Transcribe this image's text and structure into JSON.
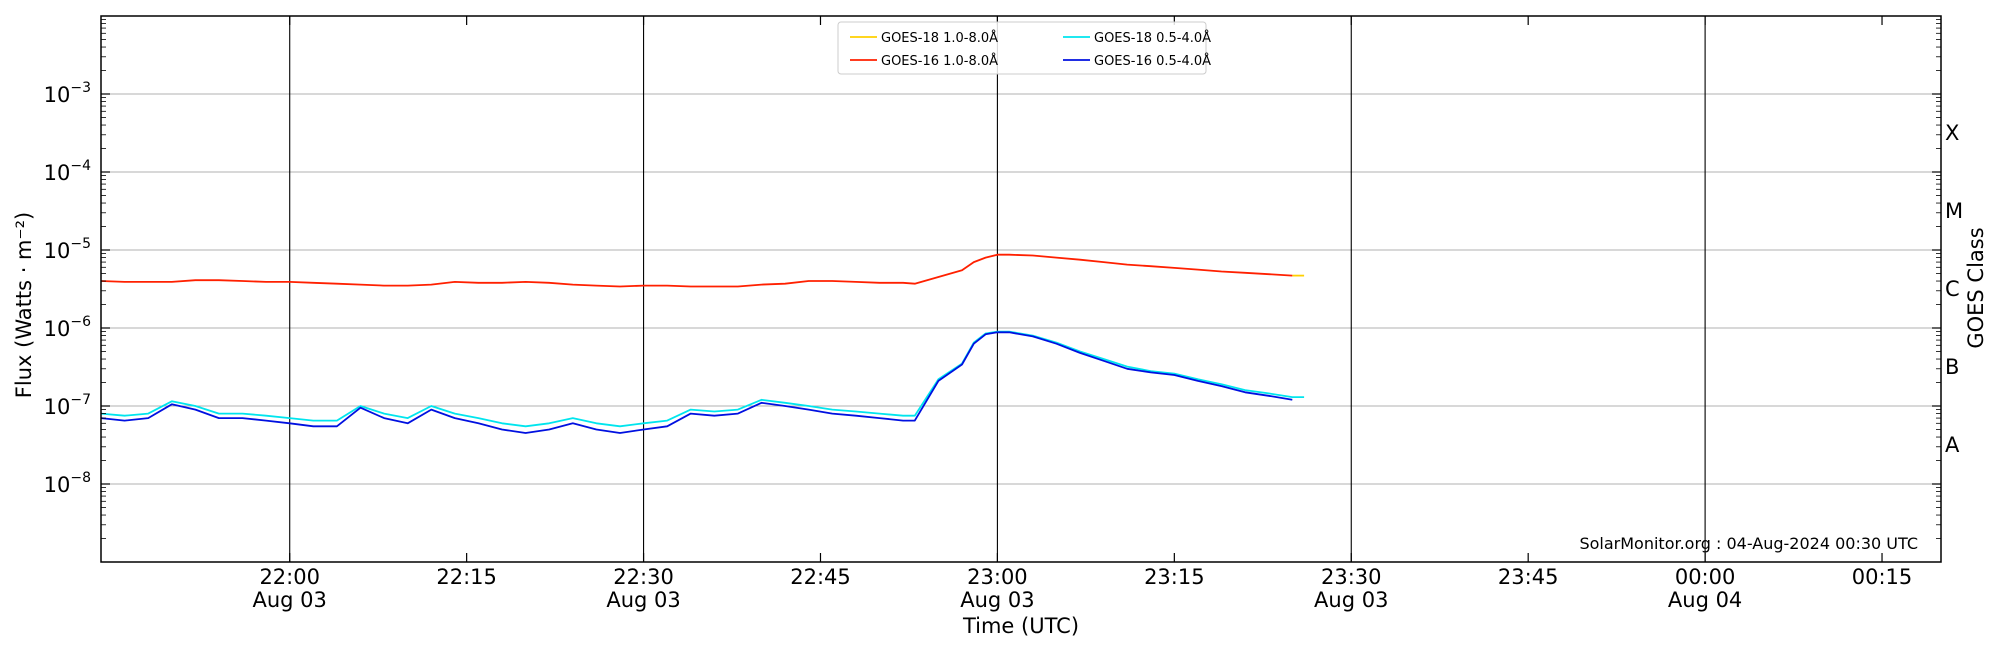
{
  "chart_data": {
    "type": "line",
    "ylabel": "Flux (Watts · m⁻²)",
    "xlabel": "Time (UTC)",
    "right_label": "GOES Class",
    "y_scale": "log",
    "ylim": [
      1e-09,
      0.01
    ],
    "y_ticks": [
      {
        "value": 1e-08,
        "base": "10",
        "exp": "−8"
      },
      {
        "value": 1e-07,
        "base": "10",
        "exp": "−7"
      },
      {
        "value": 1e-06,
        "base": "10",
        "exp": "−6"
      },
      {
        "value": 1e-05,
        "base": "10",
        "exp": "−5"
      },
      {
        "value": 0.0001,
        "base": "10",
        "exp": "−4"
      },
      {
        "value": 0.001,
        "base": "10",
        "exp": "−3"
      }
    ],
    "xlim": [
      "2024-08-03 21:44",
      "2024-08-04 00:20"
    ],
    "x_ticks": [
      {
        "time": "2024-08-03 22:00",
        "label": "22:00",
        "sub": "Aug 03",
        "vline": true
      },
      {
        "time": "2024-08-03 22:15",
        "label": "22:15",
        "sub": "",
        "vline": false
      },
      {
        "time": "2024-08-03 22:30",
        "label": "22:30",
        "sub": "Aug 03",
        "vline": true
      },
      {
        "time": "2024-08-03 22:45",
        "label": "22:45",
        "sub": "",
        "vline": false
      },
      {
        "time": "2024-08-03 23:00",
        "label": "23:00",
        "sub": "Aug 03",
        "vline": true
      },
      {
        "time": "2024-08-03 23:15",
        "label": "23:15",
        "sub": "",
        "vline": false
      },
      {
        "time": "2024-08-03 23:30",
        "label": "23:30",
        "sub": "Aug 03",
        "vline": true
      },
      {
        "time": "2024-08-03 23:45",
        "label": "23:45",
        "sub": "",
        "vline": false
      },
      {
        "time": "2024-08-04 00:00",
        "label": "00:00",
        "sub": "Aug 04",
        "vline": true
      },
      {
        "time": "2024-08-04 00:15",
        "label": "00:15",
        "sub": "",
        "vline": false
      }
    ],
    "goes_classes": [
      {
        "label": "A",
        "low": 1e-08,
        "high": 1e-07
      },
      {
        "label": "B",
        "low": 1e-07,
        "high": 1e-06
      },
      {
        "label": "C",
        "low": 1e-06,
        "high": 1e-05
      },
      {
        "label": "M",
        "low": 1e-05,
        "high": 0.0001
      },
      {
        "label": "X",
        "low": 0.0001,
        "high": 0.001
      }
    ],
    "grid": "horizontal at decades, vertical at day-labelled ticks",
    "legend_position": "top-center",
    "legend_columns": 2,
    "watermark": "SolarMonitor.org : 04-Aug-2024 00:30 UTC",
    "series": [
      {
        "name": "GOES-18 1.0-8.0Å",
        "color": "#ffd000",
        "x": [
          "2024-08-03 23:25",
          "2024-08-03 23:26"
        ],
        "y": [
          4.7e-06,
          4.7e-06
        ]
      },
      {
        "name": "GOES-16 1.0-8.0Å",
        "color": "#ff2000",
        "x": [
          "2024-08-03 21:44",
          "2024-08-03 21:46",
          "2024-08-03 21:48",
          "2024-08-03 21:50",
          "2024-08-03 21:52",
          "2024-08-03 21:54",
          "2024-08-03 21:56",
          "2024-08-03 21:58",
          "2024-08-03 22:00",
          "2024-08-03 22:02",
          "2024-08-03 22:04",
          "2024-08-03 22:06",
          "2024-08-03 22:08",
          "2024-08-03 22:10",
          "2024-08-03 22:12",
          "2024-08-03 22:14",
          "2024-08-03 22:16",
          "2024-08-03 22:18",
          "2024-08-03 22:20",
          "2024-08-03 22:22",
          "2024-08-03 22:24",
          "2024-08-03 22:26",
          "2024-08-03 22:28",
          "2024-08-03 22:30",
          "2024-08-03 22:32",
          "2024-08-03 22:34",
          "2024-08-03 22:36",
          "2024-08-03 22:38",
          "2024-08-03 22:40",
          "2024-08-03 22:42",
          "2024-08-03 22:44",
          "2024-08-03 22:46",
          "2024-08-03 22:48",
          "2024-08-03 22:50",
          "2024-08-03 22:52",
          "2024-08-03 22:53",
          "2024-08-03 22:55",
          "2024-08-03 22:57",
          "2024-08-03 22:58",
          "2024-08-03 22:59",
          "2024-08-03 23:00",
          "2024-08-03 23:01",
          "2024-08-03 23:03",
          "2024-08-03 23:05",
          "2024-08-03 23:07",
          "2024-08-03 23:09",
          "2024-08-03 23:11",
          "2024-08-03 23:13",
          "2024-08-03 23:15",
          "2024-08-03 23:17",
          "2024-08-03 23:19",
          "2024-08-03 23:21",
          "2024-08-03 23:23",
          "2024-08-03 23:25"
        ],
        "y": [
          4e-06,
          3.9e-06,
          3.9e-06,
          3.9e-06,
          4.1e-06,
          4.1e-06,
          4e-06,
          3.9e-06,
          3.9e-06,
          3.8e-06,
          3.7e-06,
          3.6e-06,
          3.5e-06,
          3.5e-06,
          3.6e-06,
          3.9e-06,
          3.8e-06,
          3.8e-06,
          3.9e-06,
          3.8e-06,
          3.6e-06,
          3.5e-06,
          3.4e-06,
          3.5e-06,
          3.5e-06,
          3.4e-06,
          3.4e-06,
          3.4e-06,
          3.6e-06,
          3.7e-06,
          4e-06,
          4e-06,
          3.9e-06,
          3.8e-06,
          3.8e-06,
          3.7e-06,
          4.5e-06,
          5.5e-06,
          7e-06,
          8e-06,
          8.7e-06,
          8.7e-06,
          8.5e-06,
          8e-06,
          7.5e-06,
          7e-06,
          6.5e-06,
          6.2e-06,
          5.9e-06,
          5.6e-06,
          5.3e-06,
          5.1e-06,
          4.9e-06,
          4.7e-06
        ]
      },
      {
        "name": "GOES-18 0.5-4.0Å",
        "color": "#00e5ee",
        "x": [
          "2024-08-03 21:44",
          "2024-08-03 21:46",
          "2024-08-03 21:48",
          "2024-08-03 21:50",
          "2024-08-03 21:52",
          "2024-08-03 21:54",
          "2024-08-03 21:56",
          "2024-08-03 21:58",
          "2024-08-03 22:00",
          "2024-08-03 22:02",
          "2024-08-03 22:04",
          "2024-08-03 22:06",
          "2024-08-03 22:08",
          "2024-08-03 22:10",
          "2024-08-03 22:12",
          "2024-08-03 22:14",
          "2024-08-03 22:16",
          "2024-08-03 22:18",
          "2024-08-03 22:20",
          "2024-08-03 22:22",
          "2024-08-03 22:24",
          "2024-08-03 22:26",
          "2024-08-03 22:28",
          "2024-08-03 22:30",
          "2024-08-03 22:32",
          "2024-08-03 22:34",
          "2024-08-03 22:36",
          "2024-08-03 22:38",
          "2024-08-03 22:40",
          "2024-08-03 22:42",
          "2024-08-03 22:44",
          "2024-08-03 22:46",
          "2024-08-03 22:48",
          "2024-08-03 22:50",
          "2024-08-03 22:52",
          "2024-08-03 22:53",
          "2024-08-03 22:55",
          "2024-08-03 22:57",
          "2024-08-03 22:58",
          "2024-08-03 22:59",
          "2024-08-03 23:00",
          "2024-08-03 23:01",
          "2024-08-03 23:03",
          "2024-08-03 23:05",
          "2024-08-03 23:07",
          "2024-08-03 23:09",
          "2024-08-03 23:11",
          "2024-08-03 23:13",
          "2024-08-03 23:15",
          "2024-08-03 23:17",
          "2024-08-03 23:19",
          "2024-08-03 23:21",
          "2024-08-03 23:23",
          "2024-08-03 23:25",
          "2024-08-03 23:26"
        ],
        "y": [
          8e-08,
          7.5e-08,
          8e-08,
          1.15e-07,
          1e-07,
          8e-08,
          8e-08,
          7.5e-08,
          7e-08,
          6.5e-08,
          6.5e-08,
          1e-07,
          8e-08,
          7e-08,
          1e-07,
          8e-08,
          7e-08,
          6e-08,
          5.5e-08,
          6e-08,
          7e-08,
          6e-08,
          5.5e-08,
          6e-08,
          6.5e-08,
          9e-08,
          8.5e-08,
          9e-08,
          1.2e-07,
          1.1e-07,
          1e-07,
          9e-08,
          8.5e-08,
          8e-08,
          7.5e-08,
          7.5e-08,
          2.2e-07,
          3.5e-07,
          6.5e-07,
          8.5e-07,
          9e-07,
          9e-07,
          8e-07,
          6.5e-07,
          5e-07,
          4e-07,
          3.2e-07,
          2.8e-07,
          2.6e-07,
          2.2e-07,
          1.9e-07,
          1.6e-07,
          1.45e-07,
          1.3e-07,
          1.3e-07
        ]
      },
      {
        "name": "GOES-16 0.5-4.0Å",
        "color": "#0010e0",
        "x": [
          "2024-08-03 21:44",
          "2024-08-03 21:46",
          "2024-08-03 21:48",
          "2024-08-03 21:50",
          "2024-08-03 21:52",
          "2024-08-03 21:54",
          "2024-08-03 21:56",
          "2024-08-03 21:58",
          "2024-08-03 22:00",
          "2024-08-03 22:02",
          "2024-08-03 22:04",
          "2024-08-03 22:06",
          "2024-08-03 22:08",
          "2024-08-03 22:10",
          "2024-08-03 22:12",
          "2024-08-03 22:14",
          "2024-08-03 22:16",
          "2024-08-03 22:18",
          "2024-08-03 22:20",
          "2024-08-03 22:22",
          "2024-08-03 22:24",
          "2024-08-03 22:26",
          "2024-08-03 22:28",
          "2024-08-03 22:30",
          "2024-08-03 22:32",
          "2024-08-03 22:34",
          "2024-08-03 22:36",
          "2024-08-03 22:38",
          "2024-08-03 22:40",
          "2024-08-03 22:42",
          "2024-08-03 22:44",
          "2024-08-03 22:46",
          "2024-08-03 22:48",
          "2024-08-03 22:50",
          "2024-08-03 22:52",
          "2024-08-03 22:53",
          "2024-08-03 22:55",
          "2024-08-03 22:57",
          "2024-08-03 22:58",
          "2024-08-03 22:59",
          "2024-08-03 23:00",
          "2024-08-03 23:01",
          "2024-08-03 23:03",
          "2024-08-03 23:05",
          "2024-08-03 23:07",
          "2024-08-03 23:09",
          "2024-08-03 23:11",
          "2024-08-03 23:13",
          "2024-08-03 23:15",
          "2024-08-03 23:17",
          "2024-08-03 23:19",
          "2024-08-03 23:21",
          "2024-08-03 23:23",
          "2024-08-03 23:25"
        ],
        "y": [
          7e-08,
          6.5e-08,
          7e-08,
          1.05e-07,
          9e-08,
          7e-08,
          7e-08,
          6.5e-08,
          6e-08,
          5.5e-08,
          5.5e-08,
          9.5e-08,
          7e-08,
          6e-08,
          9e-08,
          7e-08,
          6e-08,
          5e-08,
          4.5e-08,
          5e-08,
          6e-08,
          5e-08,
          4.5e-08,
          5e-08,
          5.5e-08,
          8e-08,
          7.5e-08,
          8e-08,
          1.1e-07,
          1e-07,
          9e-08,
          8e-08,
          7.5e-08,
          7e-08,
          6.5e-08,
          6.5e-08,
          2.1e-07,
          3.4e-07,
          6.3e-07,
          8.3e-07,
          8.8e-07,
          8.8e-07,
          7.8e-07,
          6.3e-07,
          4.8e-07,
          3.8e-07,
          3e-07,
          2.7e-07,
          2.5e-07,
          2.1e-07,
          1.8e-07,
          1.5e-07,
          1.35e-07,
          1.2e-07
        ]
      }
    ]
  }
}
